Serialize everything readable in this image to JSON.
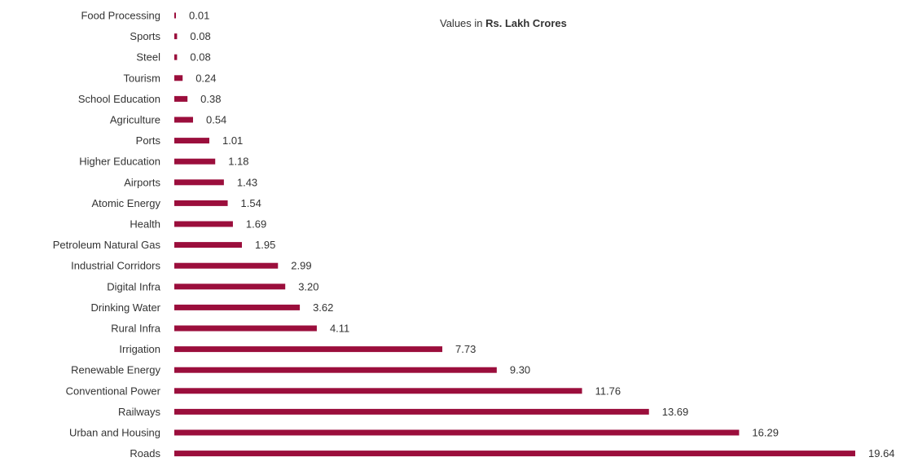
{
  "note": {
    "prefix": "Values in",
    "unit": "Rs. Lakh Crores"
  },
  "colors": {
    "bar": "#9b0e3c",
    "text": "#333333"
  },
  "chart_data": {
    "type": "bar",
    "orientation": "horizontal",
    "categories": [
      "Food Processing",
      "Sports",
      "Steel",
      "Tourism",
      "School Education",
      "Agriculture",
      "Ports",
      "Higher Education",
      "Airports",
      "Atomic Energy",
      "Health",
      "Petroleum Natural Gas",
      "Industrial Corridors",
      "Digital Infra",
      "Drinking Water",
      "Rural Infra",
      "Irrigation",
      "Renewable Energy",
      "Conventional Power",
      "Railways",
      "Urban and Housing",
      "Roads"
    ],
    "values": [
      0.01,
      0.08,
      0.08,
      0.24,
      0.38,
      0.54,
      1.01,
      1.18,
      1.43,
      1.54,
      1.69,
      1.95,
      2.99,
      3.2,
      3.62,
      4.11,
      7.73,
      9.3,
      11.76,
      13.69,
      16.29,
      19.64
    ],
    "value_labels": [
      "0.01",
      "0.08",
      "0.08",
      "0.24",
      "0.38",
      "0.54",
      "1.01",
      "1.18",
      "1.43",
      "1.54",
      "1.69",
      "1.95",
      "2.99",
      "3.20",
      "3.62",
      "4.11",
      "7.73",
      "9.30",
      "11.76",
      "13.69",
      "16.29",
      "19.64"
    ],
    "xlim": [
      0,
      19.64
    ],
    "grid": false,
    "legend": "none"
  }
}
